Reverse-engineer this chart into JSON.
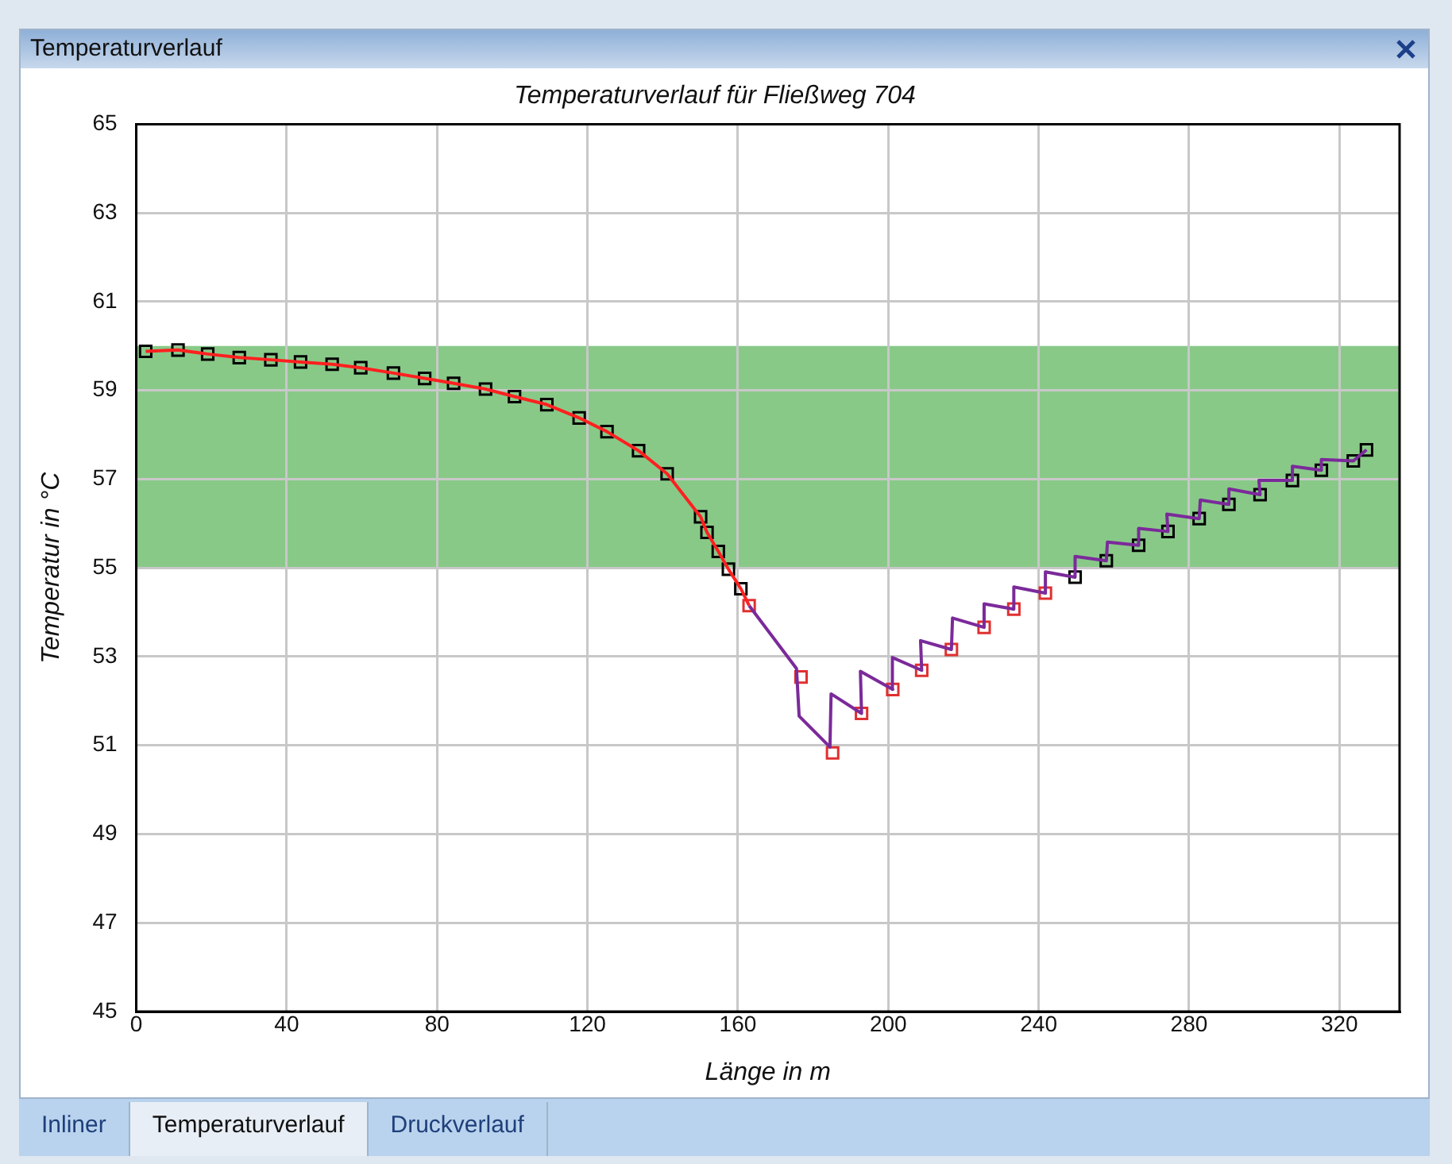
{
  "chart_data": {
    "type": "line",
    "title": "Temperaturverlauf für Fließweg 704",
    "xlabel": "Länge in m",
    "ylabel": "Temperatur in °C",
    "xlim": [
      0,
      336
    ],
    "xticks": [
      0,
      40,
      80,
      120,
      160,
      200,
      240,
      280,
      320
    ],
    "ylim": [
      45,
      65
    ],
    "yticks": [
      45,
      47,
      49,
      51,
      53,
      55,
      57,
      59,
      61,
      63,
      65
    ],
    "grid": true,
    "legend": false,
    "bands": [
      {
        "axis": "y",
        "from": 55,
        "to": 60,
        "color": "#88c988"
      }
    ],
    "annotations": [
      "Temperaturverlauf",
      "Inliner",
      "Temperaturverlauf",
      "Druckverlauf"
    ],
    "series": [
      {
        "type": "line",
        "color": "#ff2020",
        "marker": "none",
        "x": [
          2.5,
          11.1,
          19.0,
          27.4,
          35.8,
          43.7,
          52.1,
          59.7,
          68.4,
          76.7,
          84.4,
          92.9,
          100.6,
          109.2,
          117.8,
          125.2,
          133.6,
          141.2,
          150.1,
          151.8,
          154.8,
          157.5,
          160.8,
          163.0
        ],
        "values": [
          59.88,
          59.91,
          59.82,
          59.74,
          59.69,
          59.64,
          59.59,
          59.51,
          59.39,
          59.27,
          59.16,
          59.03,
          58.86,
          58.68,
          58.38,
          58.07,
          57.64,
          57.12,
          56.15,
          55.8,
          55.37,
          54.97,
          54.53,
          54.15
        ]
      },
      {
        "type": "line",
        "color": "#7b2a9a",
        "marker": "none",
        "x": [
          163.0,
          175.6,
          176.3,
          184.5,
          184.8,
          192.9,
          192.6,
          201.2,
          201.1,
          208.9,
          208.6,
          216.8,
          217.1,
          225.5,
          225.5,
          233.4,
          233.4,
          241.8,
          241.8,
          249.7,
          249.7,
          258.0,
          258.3,
          266.6,
          266.6,
          274.4,
          274.1,
          282.7,
          283.0,
          290.6,
          290.6,
          298.9,
          298.6,
          307.5,
          307.5,
          315.2,
          315.2,
          323.7,
          327.2
        ],
        "values": [
          54.15,
          52.73,
          51.66,
          50.96,
          52.16,
          51.72,
          52.67,
          52.26,
          52.98,
          52.69,
          53.36,
          53.16,
          53.87,
          53.66,
          54.19,
          54.07,
          54.57,
          54.43,
          54.91,
          54.79,
          55.26,
          55.16,
          55.58,
          55.51,
          55.89,
          55.82,
          56.21,
          56.11,
          56.53,
          56.43,
          56.78,
          56.65,
          56.97,
          56.97,
          57.29,
          57.2,
          57.44,
          57.41,
          57.66
        ]
      },
      {
        "type": "scatter",
        "color": "#000000",
        "marker": "square",
        "x": [
          2.5,
          11.1,
          19.0,
          27.4,
          35.8,
          43.7,
          52.1,
          59.7,
          68.4,
          76.7,
          84.4,
          92.9,
          100.6,
          109.2,
          117.8,
          125.2,
          133.6,
          141.2,
          150.1,
          151.8,
          154.8,
          157.5,
          160.8,
          249.7,
          258.0,
          266.6,
          274.4,
          282.7,
          290.6,
          298.9,
          307.5,
          315.2,
          323.7,
          327.2
        ],
        "values": [
          59.88,
          59.91,
          59.82,
          59.74,
          59.69,
          59.64,
          59.59,
          59.51,
          59.39,
          59.27,
          59.16,
          59.03,
          58.86,
          58.68,
          58.38,
          58.07,
          57.64,
          57.12,
          56.15,
          55.8,
          55.37,
          54.97,
          54.53,
          54.79,
          55.16,
          55.51,
          55.82,
          56.11,
          56.43,
          56.65,
          56.97,
          57.2,
          57.41,
          57.66
        ]
      },
      {
        "type": "scatter",
        "color": "#e03030",
        "marker": "square",
        "x": [
          163.0,
          176.8,
          185.2,
          192.9,
          201.2,
          208.9,
          216.8,
          225.5,
          233.4,
          241.8
        ],
        "values": [
          54.15,
          52.54,
          50.83,
          51.72,
          52.26,
          52.69,
          53.16,
          53.66,
          54.07,
          54.43
        ]
      }
    ]
  }
}
